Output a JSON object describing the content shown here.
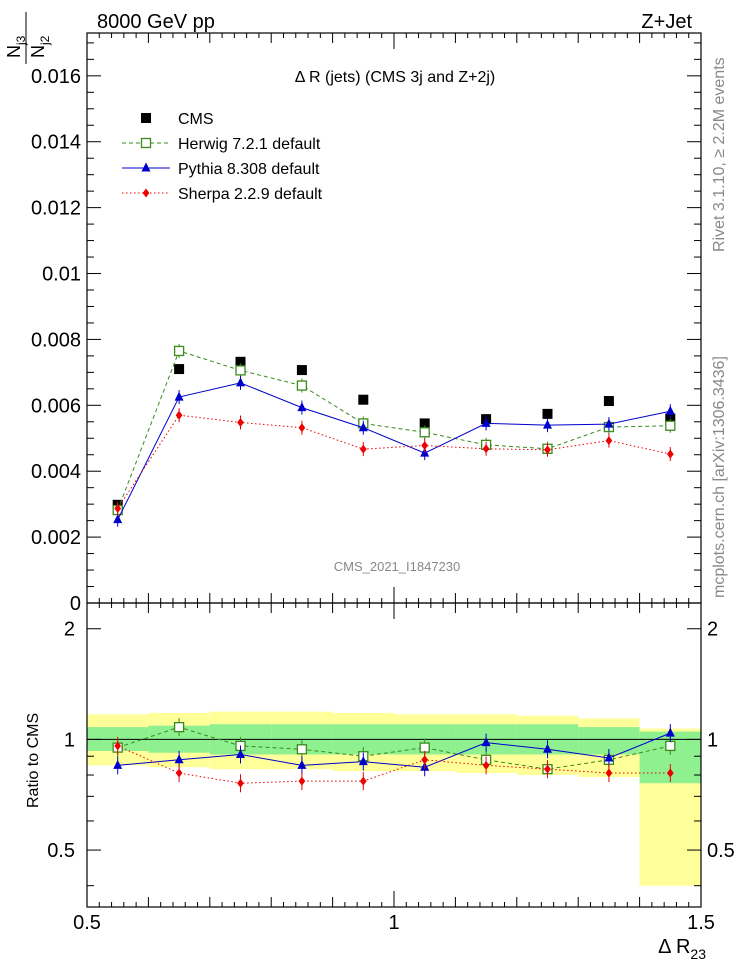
{
  "header": {
    "left": "8000 GeV pp",
    "right": "Z+Jet"
  },
  "side": {
    "upper": "Rivet 3.1.10, ≥ 2.2M events",
    "lower": "mcplots.cern.ch [arXiv:1306.3436]"
  },
  "watermark": "CMS_2021_I1847230",
  "chart_data": [
    {
      "type": "scatter",
      "title": "Δ R (jets) (CMS 3j and Z+2j)",
      "xlabel": "Δ R23",
      "ylabel": "N_j3 / N_j2",
      "xlim": [
        0.5,
        1.5
      ],
      "ylim": [
        0,
        0.0173
      ],
      "x_ticks": [
        "0.5",
        "1",
        "1.5"
      ],
      "y_ticks": [
        "0",
        "0.002",
        "0.004",
        "0.006",
        "0.008",
        "0.01",
        "0.012",
        "0.014",
        "0.016"
      ],
      "x": [
        0.55,
        0.65,
        0.75,
        0.85,
        0.95,
        1.05,
        1.15,
        1.25,
        1.35,
        1.45
      ],
      "legend_position": "top-left",
      "series": [
        {
          "name": "CMS",
          "color": "#000000",
          "marker": "square",
          "values": [
            0.00298,
            0.0071,
            0.00732,
            0.00707,
            0.00617,
            0.00545,
            0.00558,
            0.00574,
            0.00613,
            0.0056
          ]
        },
        {
          "name": "Herwig 7.2.1 default",
          "color": "#3a8a1c",
          "marker": "open-square",
          "line": "dashed",
          "values": [
            0.00282,
            0.00765,
            0.00706,
            0.0066,
            0.00545,
            0.00518,
            0.0048,
            0.00468,
            0.00534,
            0.00538
          ]
        },
        {
          "name": "Pythia 8.308 default",
          "color": "#0000cc",
          "marker": "triangle",
          "line": "solid",
          "values": [
            0.00253,
            0.00625,
            0.00668,
            0.00593,
            0.00532,
            0.00455,
            0.00545,
            0.0054,
            0.00543,
            0.00582
          ]
        },
        {
          "name": "Sherpa 2.2.9 default",
          "color": "#ee0000",
          "marker": "diamond",
          "line": "dotted",
          "values": [
            0.00287,
            0.0057,
            0.00548,
            0.00532,
            0.00467,
            0.00478,
            0.00468,
            0.00465,
            0.00493,
            0.00452
          ]
        }
      ]
    },
    {
      "type": "scatter",
      "ylabel": "Ratio to CMS",
      "xlabel": "Δ R23",
      "xlim": [
        0.5,
        1.5
      ],
      "ylim": [
        0.35,
        2.35
      ],
      "y_scale": "log",
      "y_ticks": [
        "0.5",
        "1",
        "2"
      ],
      "x": [
        0.55,
        0.65,
        0.75,
        0.85,
        0.95,
        1.05,
        1.15,
        1.25,
        1.35,
        1.45
      ],
      "bands": {
        "green": [
          [
            0.93,
            1.08
          ],
          [
            0.92,
            1.09
          ],
          [
            0.91,
            1.1
          ],
          [
            0.91,
            1.1
          ],
          [
            0.91,
            1.1
          ],
          [
            0.91,
            1.1
          ],
          [
            0.91,
            1.1
          ],
          [
            0.91,
            1.1
          ],
          [
            0.91,
            1.08
          ],
          [
            0.76,
            1.05
          ]
        ],
        "yellow": [
          [
            0.85,
            1.17
          ],
          [
            0.84,
            1.18
          ],
          [
            0.83,
            1.19
          ],
          [
            0.83,
            1.19
          ],
          [
            0.82,
            1.18
          ],
          [
            0.82,
            1.17
          ],
          [
            0.81,
            1.17
          ],
          [
            0.8,
            1.16
          ],
          [
            0.79,
            1.14
          ],
          [
            0.4,
            1.07
          ]
        ]
      },
      "series": [
        {
          "name": "Herwig 7.2.1 default",
          "color": "#3a8a1c",
          "marker": "open-square",
          "line": "dashed",
          "values": [
            0.95,
            1.08,
            0.96,
            0.94,
            0.9,
            0.95,
            0.88,
            0.83,
            0.88,
            0.96
          ]
        },
        {
          "name": "Pythia 8.308 default",
          "color": "#0000cc",
          "marker": "triangle",
          "line": "solid",
          "values": [
            0.85,
            0.88,
            0.91,
            0.85,
            0.87,
            0.84,
            0.98,
            0.94,
            0.89,
            1.04
          ]
        },
        {
          "name": "Sherpa 2.2.9 default",
          "color": "#ee0000",
          "marker": "diamond",
          "line": "dotted",
          "values": [
            0.96,
            0.81,
            0.76,
            0.77,
            0.77,
            0.88,
            0.85,
            0.83,
            0.81,
            0.81
          ]
        }
      ]
    }
  ]
}
